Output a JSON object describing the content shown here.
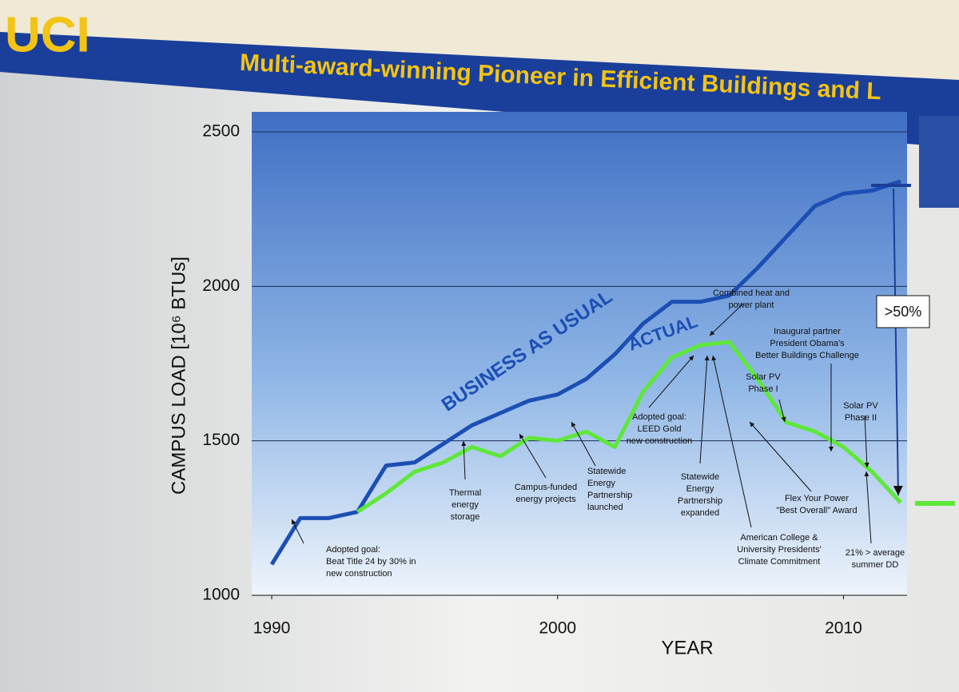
{
  "header": {
    "logo": "UCI",
    "title": "Multi-award-winning Pioneer in Efficient Buildings and L"
  },
  "chart_data": {
    "type": "line",
    "x_label": "YEAR",
    "y_label": "CAMPUS LOAD [10⁶ BTUs]",
    "x": [
      1990,
      1991,
      1992,
      1993,
      1994,
      1995,
      1996,
      1997,
      1998,
      1999,
      2000,
      2001,
      2002,
      2003,
      2004,
      2005,
      2006,
      2007,
      2008,
      2009,
      2010,
      2011,
      2012
    ],
    "series": [
      {
        "name": "BUSINESS AS USUAL",
        "color": "#1c4fb4",
        "values": [
          1100,
          1250,
          1250,
          1270,
          1420,
          1430,
          1490,
          1550,
          1590,
          1630,
          1650,
          1700,
          1780,
          1880,
          1950,
          1950,
          1970,
          2060,
          2160,
          2260,
          2300,
          2310,
          2340
        ]
      },
      {
        "name": "ACTUAL",
        "color": "#5ee83a",
        "values": [
          null,
          null,
          null,
          1270,
          1330,
          1400,
          1430,
          1480,
          1450,
          1510,
          1500,
          1530,
          1480,
          1660,
          1770,
          1810,
          1820,
          1700,
          1560,
          1530,
          1480,
          1400,
          1300
        ]
      }
    ],
    "xlim": [
      1990,
      2012
    ],
    "xticks": [
      1990,
      2000,
      2010
    ],
    "ylim": [
      1000,
      2500
    ],
    "yticks": [
      1000,
      1500,
      2000,
      2500
    ],
    "grid": true,
    "reduction_label": ">50%",
    "annotations": [
      {
        "lines": [
          "Adopted goal:",
          "Beat Title 24 by 30% in",
          "new construction"
        ]
      },
      {
        "lines": [
          "Thermal",
          "energy",
          "storage"
        ]
      },
      {
        "lines": [
          "Campus-funded",
          "energy projects"
        ]
      },
      {
        "lines": [
          "Statewide",
          "Energy",
          "Partnership",
          "launched"
        ]
      },
      {
        "lines": [
          "Adopted goal:",
          "LEED Gold",
          "new construction"
        ]
      },
      {
        "lines": [
          "Combined heat and",
          "power plant"
        ]
      },
      {
        "lines": [
          "Inaugural partner",
          "President Obama's",
          "Better Buildings Challenge"
        ]
      },
      {
        "lines": [
          "Solar PV",
          "Phase I"
        ]
      },
      {
        "lines": [
          "Solar PV",
          "Phase II"
        ]
      },
      {
        "lines": [
          "Statewide",
          "Energy",
          "Partnership",
          "expanded"
        ]
      },
      {
        "lines": [
          "Flex Your Power",
          "\"Best Overall\" Award"
        ]
      },
      {
        "lines": [
          "American College &",
          "University Presidents'",
          "Climate Commitment"
        ]
      },
      {
        "lines": [
          "21% > average",
          "summer DD"
        ]
      }
    ]
  }
}
